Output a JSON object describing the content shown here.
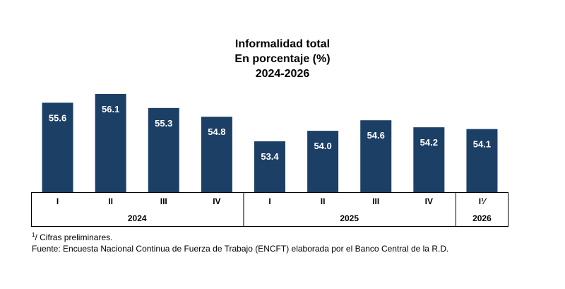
{
  "chart_data": {
    "type": "bar",
    "title": "Informalidad total",
    "subtitle": "En porcentaje (%)",
    "period": "2024-2026",
    "categories": [
      "I",
      "II",
      "III",
      "IV",
      "I",
      "II",
      "III",
      "IV",
      "I¹⁄"
    ],
    "values": [
      55.6,
      56.1,
      55.3,
      54.8,
      53.4,
      54.0,
      54.6,
      54.2,
      54.1
    ],
    "value_labels": [
      "55.6",
      "56.1",
      "55.3",
      "54.8",
      "53.4",
      "54.0",
      "54.6",
      "54.2",
      "54.1"
    ],
    "groups": [
      {
        "label": "2024",
        "count": 4
      },
      {
        "label": "2025",
        "count": 4
      },
      {
        "label": "2026",
        "count": 1
      }
    ],
    "ylim": [
      50.5,
      56.3
    ],
    "bar_color": "#1c3f66",
    "grid": false,
    "legend": "none"
  },
  "footnotes": {
    "preliminary_mark": "1",
    "preliminary": "/ Cifras preliminares.",
    "source": "Fuente: Encuesta Nacional Continua de Fuerza de Trabajo (ENCFT) elaborada por el Banco Central de la R.D."
  }
}
